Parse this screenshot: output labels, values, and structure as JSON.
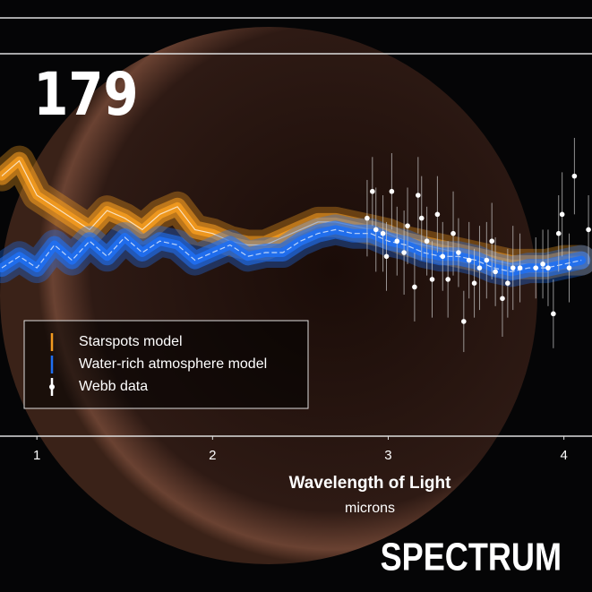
{
  "counter": "179",
  "brand": "SPECTRUM",
  "chart_data": {
    "type": "line",
    "xlabel": "Wavelength of Light",
    "xunit": "microns",
    "xlim": [
      0.79,
      4.16
    ],
    "xticks": [
      1,
      2,
      3,
      4
    ],
    "ylim": [
      0,
      100
    ],
    "x": [
      0.8,
      0.9,
      1.0,
      1.1,
      1.2,
      1.3,
      1.4,
      1.5,
      1.6,
      1.7,
      1.8,
      1.9,
      2.0,
      2.1,
      2.2,
      2.3,
      2.4,
      2.5,
      2.6,
      2.7,
      2.8,
      2.9,
      3.0,
      3.1,
      3.2,
      3.3,
      3.4,
      3.5,
      3.6,
      3.7,
      3.8,
      3.9,
      4.0,
      4.1
    ],
    "series": [
      {
        "name": "Starspots model",
        "color": "#f29a1f",
        "values": [
          68,
          72,
          63,
          60,
          57,
          54,
          59,
          57,
          54,
          58,
          60,
          54,
          53,
          51,
          50,
          50,
          52,
          54,
          56,
          56,
          55,
          54,
          53,
          51,
          50,
          49,
          48,
          47,
          46,
          45,
          45,
          45,
          46,
          46
        ]
      },
      {
        "name": "Water-rich atmosphere model",
        "color": "#1f6ff2",
        "values": [
          44,
          47,
          44,
          50,
          46,
          51,
          47,
          52,
          48,
          51,
          50,
          46,
          48,
          50,
          47,
          48,
          48,
          51,
          53,
          54,
          53,
          53,
          51,
          50,
          48,
          47,
          47,
          46,
          44,
          43,
          44,
          44,
          45,
          46
        ]
      }
    ],
    "scatter": {
      "name": "Webb data",
      "color": "#ffffff",
      "x": [
        2.88,
        2.91,
        2.93,
        2.97,
        2.99,
        3.02,
        3.05,
        3.09,
        3.11,
        3.15,
        3.17,
        3.19,
        3.22,
        3.25,
        3.28,
        3.31,
        3.34,
        3.37,
        3.4,
        3.43,
        3.46,
        3.49,
        3.52,
        3.56,
        3.59,
        3.61,
        3.65,
        3.68,
        3.71,
        3.75,
        3.84,
        3.88,
        3.91,
        3.94,
        3.97,
        3.99,
        4.03,
        4.06,
        4.14
      ],
      "values": [
        57,
        64,
        54,
        53,
        47,
        64,
        51,
        48,
        55,
        39,
        63,
        57,
        51,
        41,
        58,
        47,
        41,
        53,
        48,
        30,
        46,
        40,
        44,
        46,
        51,
        43,
        36,
        40,
        44,
        44,
        44,
        45,
        44,
        32,
        53,
        58,
        44,
        68,
        54
      ],
      "errors": [
        10,
        9,
        11,
        10,
        9,
        10,
        9,
        11,
        10,
        9,
        10,
        11,
        9,
        10,
        10,
        9,
        10,
        11,
        9,
        8,
        10,
        9,
        11,
        10,
        10,
        9,
        10,
        9,
        11,
        9,
        8,
        9,
        10,
        9,
        10,
        11,
        9,
        10,
        9
      ]
    }
  }
}
